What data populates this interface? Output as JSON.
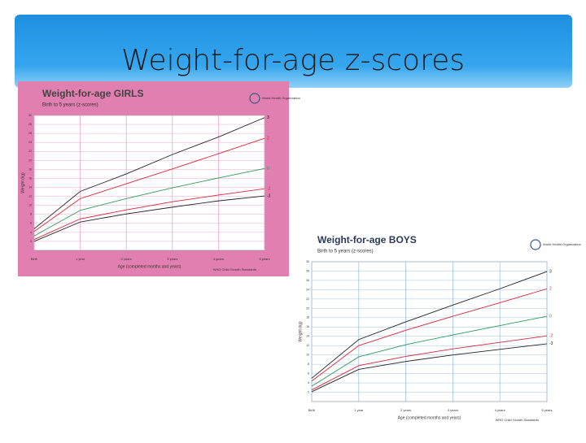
{
  "title": "Weight-for-age z-scores",
  "chart_data": [
    {
      "type": "line",
      "title": "Weight-for-age GIRLS",
      "subtitle": "Birth to 5 years (z-scores)",
      "organization": "World Health Organization",
      "source": "WHO Child Growth Standards",
      "x_label": "Age (completed months and years)",
      "y_label": "Weight (kg)",
      "x": [
        0,
        12,
        24,
        36,
        48,
        60
      ],
      "xlim": [
        0,
        60
      ],
      "xticks": [
        {
          "value": 0,
          "label": "Birth"
        },
        {
          "value": 12,
          "label": "1 year"
        },
        {
          "value": 24,
          "label": "2 years"
        },
        {
          "value": 36,
          "label": "3 years"
        },
        {
          "value": 48,
          "label": "4 years"
        },
        {
          "value": 60,
          "label": "5 years"
        }
      ],
      "ylim": [
        0,
        30
      ],
      "yticks": [
        2,
        4,
        6,
        8,
        10,
        12,
        14,
        16,
        18,
        20,
        22,
        24,
        26,
        28,
        30
      ],
      "grid": true,
      "series": [
        {
          "name": "3",
          "color": "#222222",
          "values": [
            4.8,
            13.1,
            17.0,
            21.3,
            25.2,
            29.5
          ]
        },
        {
          "name": "2",
          "color": "#d9283a",
          "values": [
            4.2,
            11.5,
            14.8,
            18.1,
            21.5,
            24.9
          ]
        },
        {
          "name": "0",
          "color": "#2e9a5a",
          "values": [
            3.2,
            8.9,
            11.5,
            13.9,
            16.1,
            18.2
          ]
        },
        {
          "name": "-2",
          "color": "#d9283a",
          "values": [
            2.4,
            7.0,
            9.0,
            10.8,
            12.3,
            13.7
          ]
        },
        {
          "name": "-3",
          "color": "#222222",
          "values": [
            2.0,
            6.3,
            8.1,
            9.6,
            11.0,
            12.1
          ]
        }
      ]
    },
    {
      "type": "line",
      "title": "Weight-for-age BOYS",
      "subtitle": "Birth to 5 years (z-scores)",
      "organization": "World Health Organization",
      "source": "WHO Child Growth Standards",
      "x_label": "Age (completed months and years)",
      "y_label": "Weight (kg)",
      "x": [
        0,
        12,
        24,
        36,
        48,
        60
      ],
      "xlim": [
        0,
        60
      ],
      "xticks": [
        {
          "value": 0,
          "label": "Birth"
        },
        {
          "value": 12,
          "label": "1 year"
        },
        {
          "value": 24,
          "label": "2 years"
        },
        {
          "value": 36,
          "label": "3 years"
        },
        {
          "value": 48,
          "label": "4 years"
        },
        {
          "value": 60,
          "label": "5 years"
        }
      ],
      "ylim": [
        0,
        30
      ],
      "yticks": [
        2,
        4,
        6,
        8,
        10,
        12,
        14,
        16,
        18,
        20,
        22,
        24,
        26,
        28,
        30
      ],
      "grid": true,
      "series": [
        {
          "name": "3",
          "color": "#222222",
          "values": [
            5.0,
            13.3,
            17.1,
            20.7,
            24.2,
            27.9
          ]
        },
        {
          "name": "2",
          "color": "#d9283a",
          "values": [
            4.4,
            12.0,
            15.3,
            18.3,
            21.2,
            24.2
          ]
        },
        {
          "name": "0",
          "color": "#2e9a5a",
          "values": [
            3.3,
            9.6,
            12.2,
            14.3,
            16.3,
            18.3
          ]
        },
        {
          "name": "-2",
          "color": "#d9283a",
          "values": [
            2.5,
            7.7,
            9.7,
            11.3,
            12.7,
            14.1
          ]
        },
        {
          "name": "-3",
          "color": "#222222",
          "values": [
            2.1,
            6.9,
            8.6,
            10.0,
            11.2,
            12.4
          ]
        }
      ]
    }
  ]
}
